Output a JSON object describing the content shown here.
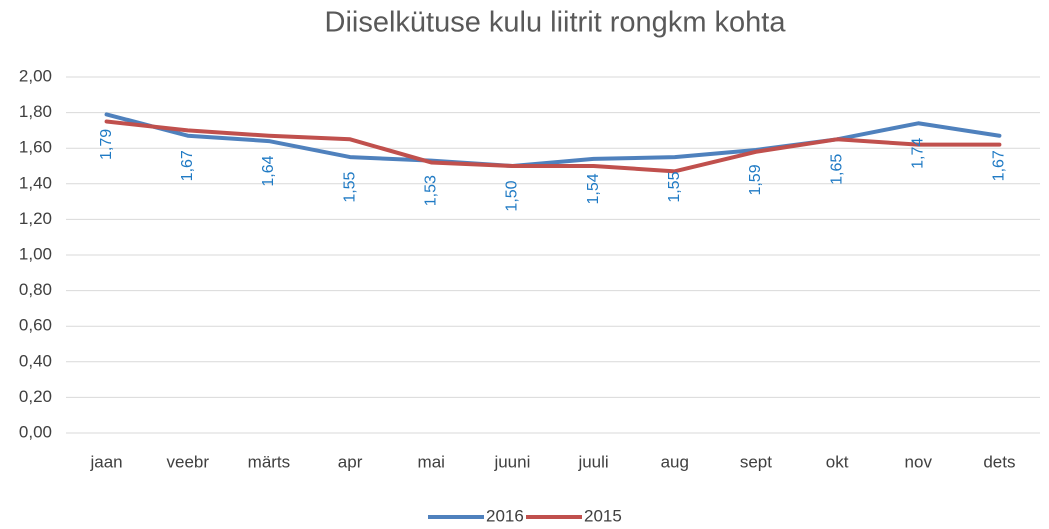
{
  "chart_data": {
    "type": "line",
    "title": "Diiselkütuse kulu liitrit rongkm kohta",
    "categories": [
      "jaan",
      "veebr",
      "märts",
      "apr",
      "mai",
      "juuni",
      "juuli",
      "aug",
      "sept",
      "okt",
      "nov",
      "dets"
    ],
    "series": [
      {
        "name": "2016",
        "color": "#4f81bd",
        "values": [
          1.79,
          1.67,
          1.64,
          1.55,
          1.53,
          1.5,
          1.54,
          1.55,
          1.59,
          1.65,
          1.74,
          1.67
        ],
        "value_labels": [
          "1,79",
          "1,67",
          "1,64",
          "1,55",
          "1,53",
          "1,50",
          "1,54",
          "1,55",
          "1,59",
          "1,65",
          "1,74",
          "1,67"
        ]
      },
      {
        "name": "2015",
        "color": "#c0504d",
        "values": [
          1.75,
          1.7,
          1.67,
          1.65,
          1.52,
          1.5,
          1.5,
          1.47,
          1.58,
          1.65,
          1.62,
          1.62
        ]
      }
    ],
    "ylim": [
      0,
      2
    ],
    "yticks": [
      {
        "value": 0,
        "label": "0,00"
      },
      {
        "value": 0.2,
        "label": "0,20"
      },
      {
        "value": 0.4,
        "label": "0,40"
      },
      {
        "value": 0.6,
        "label": "0,60"
      },
      {
        "value": 0.8,
        "label": "0,80"
      },
      {
        "value": 1,
        "label": "1,00"
      },
      {
        "value": 1.2,
        "label": "1,20"
      },
      {
        "value": 1.4,
        "label": "1,40"
      },
      {
        "value": 1.6,
        "label": "1,60"
      },
      {
        "value": 1.8,
        "label": "1,80"
      },
      {
        "value": 2,
        "label": "2,00"
      }
    ],
    "grid": true,
    "legend": "bottom"
  }
}
